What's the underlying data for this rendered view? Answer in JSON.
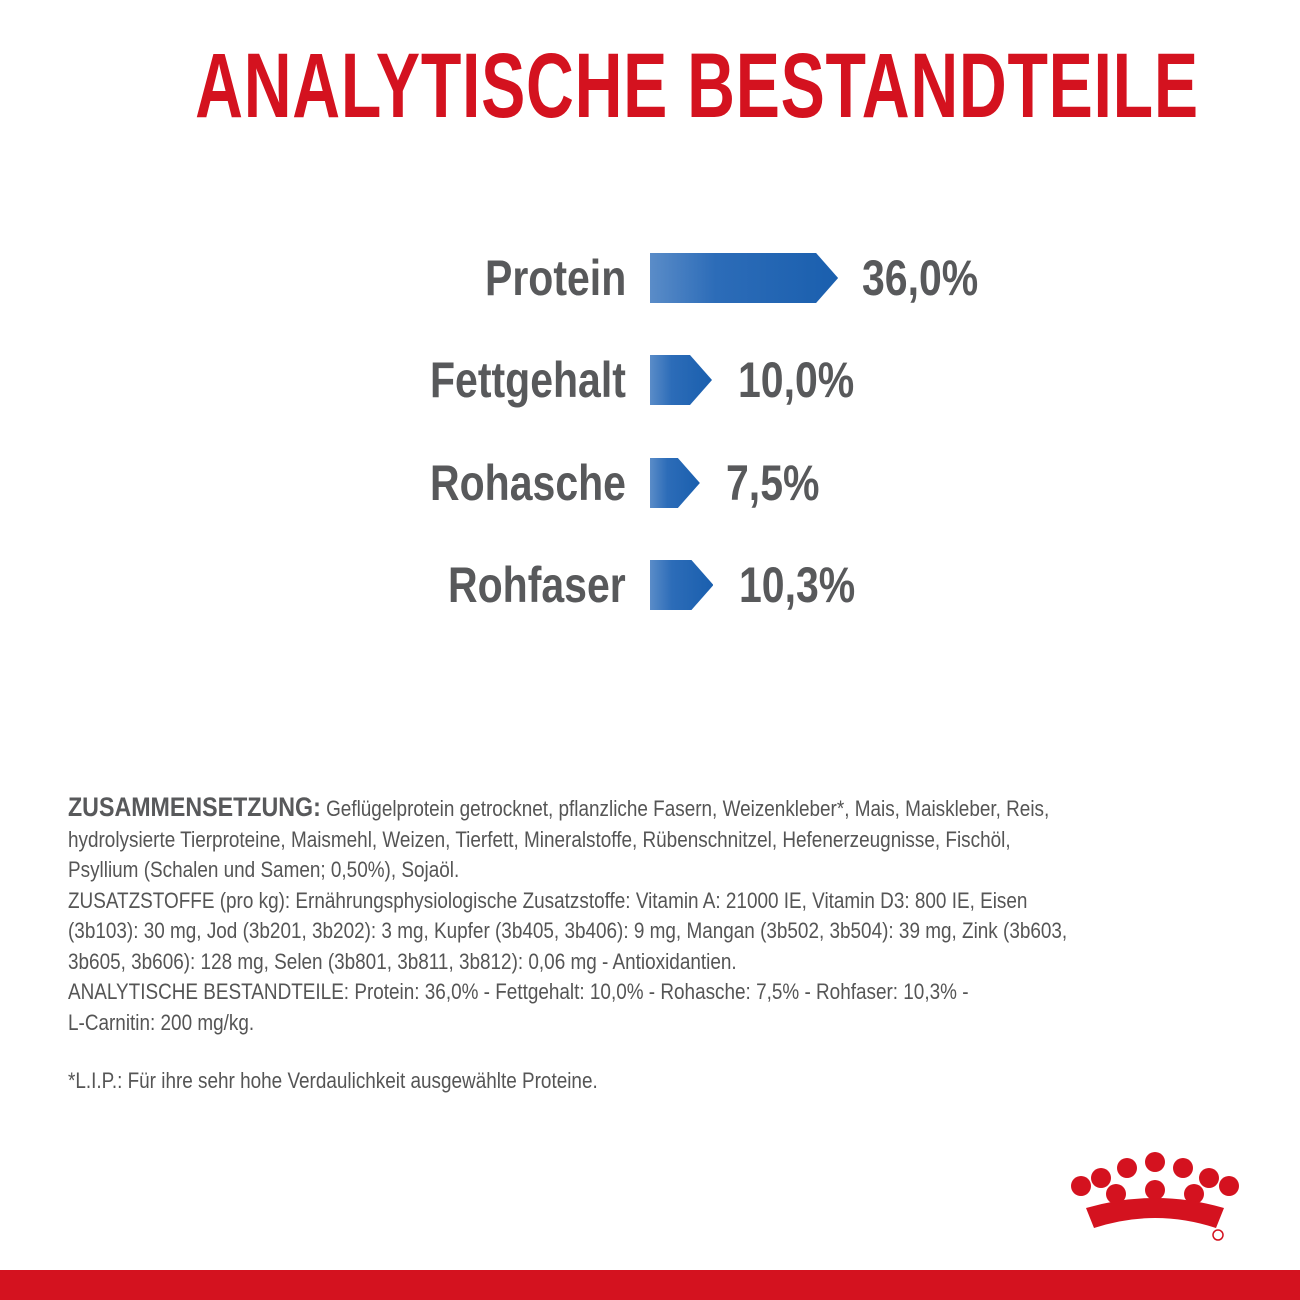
{
  "title": "ANALYTISCHE BESTANDTEILE",
  "colors": {
    "title": "#d4121f",
    "bar": "#1a5fae",
    "text": "#58595b",
    "brand_red": "#d4121f"
  },
  "chart_data": {
    "type": "bar",
    "orientation": "horizontal",
    "categories": [
      "Protein",
      "Fettgehalt",
      "Rohasche",
      "Rohfaser"
    ],
    "values": [
      36.0,
      10.0,
      7.5,
      10.3
    ],
    "value_labels": [
      "36,0%",
      "10,0%",
      "7,5%",
      "10,3%"
    ],
    "unit": "%",
    "grid": false
  },
  "composition": {
    "heading": "ZUSAMMENSETZUNG:",
    "lines": [
      " Geflügelprotein getrocknet, pflanzliche Fasern, Weizenkleber*, Mais, Maiskleber, Reis,",
      "hydrolysierte Tierproteine, Maismehl, Weizen, Tierfett, Mineralstoffe, Rübenschnitzel, Hefenerzeugnisse, Fischöl,",
      "Psyllium (Schalen und Samen; 0,50%), Sojaöl.",
      "ZUSATZSTOFFE (pro kg): Ernährungsphysiologische Zusatzstoffe: Vitamin A: 21000 IE, Vitamin D3: 800 IE, Eisen",
      "(3b103): 30 mg, Jod (3b201, 3b202): 3 mg, Kupfer (3b405, 3b406): 9 mg, Mangan (3b502, 3b504): 39 mg, Zink (3b603,",
      "3b605, 3b606): 128 mg, Selen (3b801, 3b811, 3b812): 0,06 mg - Antioxidantien.",
      "ANALYTISCHE BESTANDTEILE: Protein: 36,0% - Fettgehalt: 10,0% - Rohasche: 7,5% - Rohfaser: 10,3% -",
      "L-Carnitin: 200 mg/kg."
    ],
    "footnote": "*L.I.P.: Für ihre sehr hohe Verdaulichkeit ausgewählte Proteine."
  },
  "logo": {
    "icon": "royal-canin-crown-logo",
    "mark": "®"
  }
}
